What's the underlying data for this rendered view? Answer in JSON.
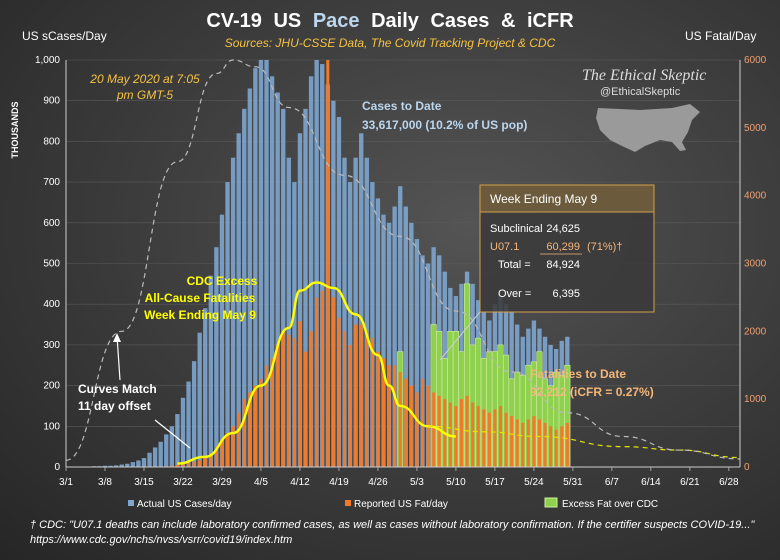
{
  "chart_data": {
    "type": "bar",
    "title_parts": [
      "CV-19",
      "US",
      "Pace",
      "Daily",
      "Cases",
      "&",
      "iCFR"
    ],
    "subtitle": "Sources: JHU-CSSE Data, The Covid Tracking Project & CDC",
    "ylabel_left": "US sCases/Day",
    "ylabel_left_units": "THOUSANDS",
    "ylabel_right": "US Fatal/Day",
    "ylim_left": [
      0,
      1000
    ],
    "ylim_right": [
      0,
      6000
    ],
    "yticks_left": [
      "0",
      "100",
      "200",
      "300",
      "400",
      "500",
      "600",
      "700",
      "800",
      "900",
      "1,000"
    ],
    "yticks_right": [
      "0",
      "1000",
      "2000",
      "3000",
      "4000",
      "5000",
      "6000"
    ],
    "xticks": [
      "3/1",
      "3/8",
      "3/15",
      "3/22",
      "3/29",
      "4/5",
      "4/12",
      "4/19",
      "4/26",
      "5/3",
      "5/10",
      "5/17",
      "5/24",
      "5/31",
      "6/7",
      "6/14",
      "6/21",
      "6/28"
    ],
    "x_days": 121,
    "bar_start_day": 5,
    "series": [
      {
        "name": "Actual US Cases/day",
        "axis": "left",
        "color": "#7ea6cf",
        "values": [
          2,
          2,
          3,
          3,
          4,
          6,
          8,
          12,
          16,
          22,
          35,
          48,
          62,
          80,
          100,
          130,
          170,
          210,
          260,
          330,
          390,
          470,
          540,
          620,
          700,
          760,
          820,
          880,
          930,
          980,
          1000,
          1000,
          960,
          920,
          880,
          760,
          700,
          820,
          880,
          960,
          1000,
          990,
          940,
          900,
          860,
          760,
          700,
          760,
          820,
          760,
          700,
          660,
          620,
          600,
          640,
          690,
          640,
          600,
          560,
          520,
          500,
          540,
          520,
          480,
          440,
          420,
          450,
          480,
          450,
          410,
          380,
          360,
          400,
          420,
          400,
          380,
          350,
          320,
          340,
          360,
          340,
          320,
          300,
          290,
          310,
          320
        ]
      },
      {
        "name": "Reported US Fat/day",
        "axis": "right",
        "color": "#f07a2a",
        "values": [
          0,
          0,
          0,
          0,
          0,
          0,
          0,
          0,
          0,
          0,
          0,
          0,
          5,
          10,
          15,
          30,
          45,
          60,
          80,
          100,
          150,
          200,
          300,
          400,
          500,
          600,
          800,
          1000,
          1100,
          1200,
          1300,
          1500,
          1600,
          1800,
          2000,
          1950,
          1900,
          2150,
          1700,
          2000,
          2500,
          2600,
          6000,
          2500,
          2200,
          2000,
          1800,
          2100,
          2100,
          2000,
          1900,
          1700,
          1600,
          1500,
          1500,
          1400,
          1300,
          1200,
          1100,
          1300,
          1200,
          1100,
          1050,
          1000,
          950,
          900,
          1000,
          1050,
          950,
          900,
          850,
          800,
          850,
          900,
          800,
          750,
          700,
          650,
          700,
          750,
          700,
          650,
          600,
          550,
          600,
          650
        ]
      },
      {
        "name": "Excess Fat over CDC",
        "axis": "right",
        "color": "#8fd14f",
        "values": [
          0,
          0,
          0,
          0,
          0,
          0,
          0,
          0,
          0,
          0,
          0,
          0,
          0,
          0,
          0,
          0,
          0,
          0,
          0,
          0,
          0,
          0,
          0,
          0,
          0,
          0,
          0,
          0,
          0,
          0,
          0,
          0,
          0,
          0,
          0,
          0,
          0,
          0,
          0,
          0,
          0,
          0,
          0,
          0,
          0,
          0,
          0,
          0,
          0,
          0,
          0,
          0,
          0,
          0,
          0,
          1700,
          0,
          0,
          0,
          0,
          0,
          2100,
          2000,
          1600,
          2000,
          2000,
          1700,
          2700,
          1800,
          1900,
          1600,
          1700,
          1700,
          1800,
          1650,
          1300,
          1400,
          1350,
          1500,
          1550,
          1700,
          1300,
          1200,
          1400,
          1350,
          1500
        ]
      }
    ],
    "lines": [
      {
        "name": "CDC Excess All-Cause Fatalities",
        "axis": "right",
        "color": "#ffff00",
        "points": [
          [
            20,
            50
          ],
          [
            25,
            150
          ],
          [
            30,
            500
          ],
          [
            35,
            1200
          ],
          [
            40,
            2050
          ],
          [
            42,
            2600
          ],
          [
            45,
            2720
          ],
          [
            48,
            2640
          ],
          [
            52,
            2250
          ],
          [
            56,
            1650
          ],
          [
            58,
            1200
          ],
          [
            60,
            900
          ],
          [
            65,
            600
          ],
          [
            70,
            450
          ]
        ]
      },
      {
        "name": "Reported fatalities trend",
        "axis": "right",
        "color": "#e6e600",
        "dash": true,
        "points": [
          [
            65,
            600
          ],
          [
            75,
            520
          ],
          [
            85,
            450
          ],
          [
            100,
            300
          ],
          [
            110,
            250
          ],
          [
            121,
            140
          ]
        ]
      },
      {
        "name": "Cases pace curve",
        "axis": "right",
        "color": "#bbbbbb",
        "dash": true,
        "points": [
          [
            0,
            100
          ],
          [
            10,
            2000
          ],
          [
            20,
            4500
          ],
          [
            27,
            5800
          ],
          [
            30,
            6000
          ],
          [
            34,
            5900
          ],
          [
            40,
            5300
          ],
          [
            50,
            4300
          ],
          [
            60,
            3400
          ],
          [
            70,
            2300
          ],
          [
            80,
            1400
          ],
          [
            90,
            800
          ],
          [
            100,
            450
          ],
          [
            110,
            250
          ],
          [
            121,
            120
          ]
        ]
      }
    ],
    "annotations": {
      "cases_to_date_label": "Cases to Date",
      "cases_to_date_value": "33,617,000  (10.2% of US pop)",
      "cdc_excess_line1": "CDC Excess",
      "cdc_excess_line2": "All-Cause Fatalities",
      "cdc_excess_line3": "Week Ending May 9",
      "curves_match_line1": "Curves Match",
      "curves_match_line2": "11 day offset",
      "fatalities_to_date_label": "Fatalities to Date",
      "fatalities_to_date_value": "92,212  (iCFR = 0.27%)",
      "timestamp_line1": "20 May 2020  at 7:05",
      "timestamp_line2": "pm GMT-5"
    },
    "week_box": {
      "header": "Week Ending May 9",
      "rows": [
        {
          "label": "Subclinical",
          "value": "24,625",
          "extra": ""
        },
        {
          "label": "U07.1",
          "value": "60,299",
          "extra": "(71%)†"
        },
        {
          "label": "Total =",
          "value": "84,924",
          "extra": ""
        },
        {
          "label": "Over =",
          "value": "6,395",
          "extra": ""
        }
      ]
    },
    "legend": [
      "Actual US Cases/day",
      "Reported US Fat/day",
      "Excess Fat over CDC"
    ]
  },
  "brand": {
    "name": "The Ethical Skeptic",
    "handle": "@EthicalSkeptic"
  },
  "footnote": "† CDC: \"U07.1 deaths can include laboratory confirmed cases, as well as cases without laboratory confirmation.  If the certifier suspects COVID-19...\"  https://www.cdc.gov/nchs/nvss/vsrr/covid19/index.htm"
}
